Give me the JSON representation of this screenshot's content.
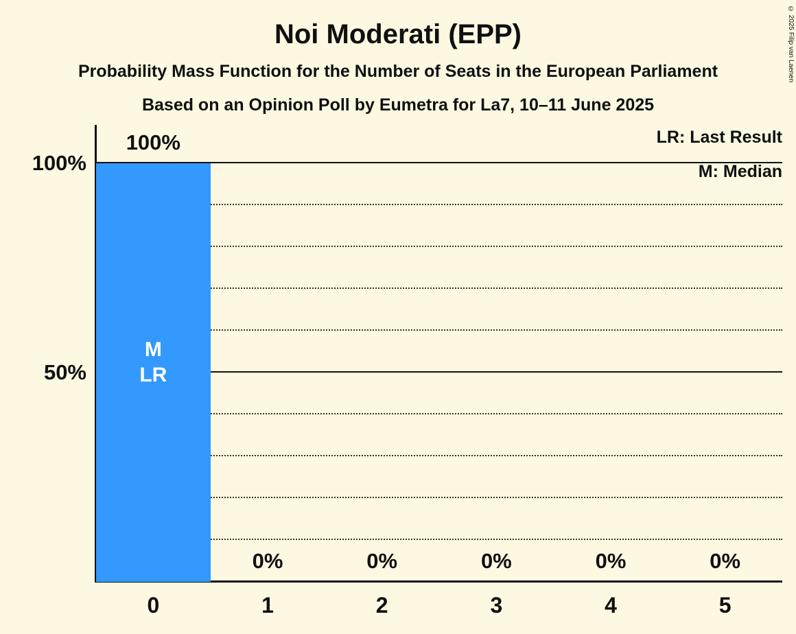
{
  "title": "Noi Moderati (EPP)",
  "subtitle1": "Probability Mass Function for the Number of Seats in the European Parliament",
  "subtitle2": "Based on an Opinion Poll by Eumetra for La7, 10–11 June 2025",
  "legend": {
    "lr": "LR: Last Result",
    "m": "M: Median"
  },
  "copyright": "© 2025 Filip van Laenen",
  "colors": {
    "background": "#FDF8E1",
    "bar": "#3399FF",
    "text": "#101010",
    "bar_label": "#FFFFFF"
  },
  "chart_data": {
    "type": "bar",
    "title": "Noi Moderati (EPP)",
    "categories": [
      "0",
      "1",
      "2",
      "3",
      "4",
      "5"
    ],
    "values": [
      100,
      0,
      0,
      0,
      0,
      0
    ],
    "value_labels": [
      "100%",
      "0%",
      "0%",
      "0%",
      "0%",
      "0%"
    ],
    "xlabel": "",
    "ylabel": "",
    "ylim": [
      0,
      100
    ],
    "y_ticks": [
      {
        "label": "100%",
        "value": 100
      },
      {
        "label": "50%",
        "value": 50
      }
    ],
    "gridlines": {
      "solid": [
        100,
        50
      ],
      "dotted": [
        90,
        80,
        70,
        60,
        40,
        30,
        20,
        10
      ]
    },
    "annotations": [
      {
        "bar": 0,
        "lines": [
          "M",
          "LR"
        ]
      }
    ],
    "legend_position": "top-right",
    "grid": true
  }
}
